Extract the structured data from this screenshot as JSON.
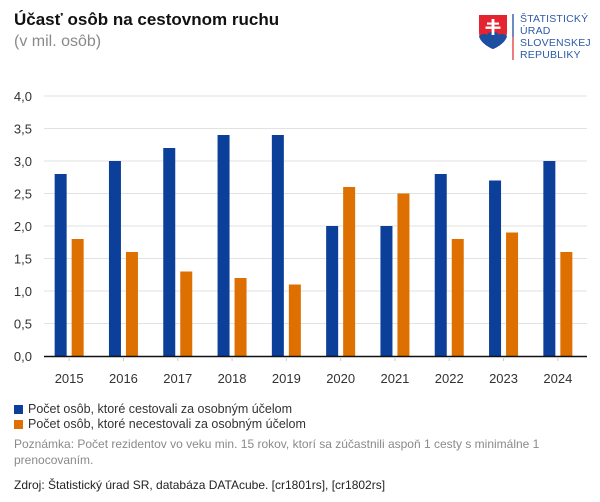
{
  "header": {
    "title": "Účasť osôb na cestovnom ruchu",
    "subtitle": "(v mil. osôb)"
  },
  "logo": {
    "icon": "slovak-coat-of-arms-icon",
    "lines": [
      "ŠTATISTICKÝ",
      "ÚRAD",
      "SLOVENSKEJ",
      "REPUBLIKY"
    ]
  },
  "chart_data": {
    "type": "bar",
    "title": "Účasť osôb na cestovnom ruchu",
    "subtitle": "(v mil. osôb)",
    "xlabel": "",
    "ylabel": "",
    "categories": [
      "2015",
      "2016",
      "2017",
      "2018",
      "2019",
      "2020",
      "2021",
      "2022",
      "2023",
      "2024"
    ],
    "series": [
      {
        "name": "Počet osôb, ktoré cestovali za osobným účelom",
        "color": "#0b3f9a",
        "values": [
          2.8,
          3.0,
          3.2,
          3.4,
          3.4,
          2.0,
          2.0,
          2.8,
          2.7,
          3.0
        ]
      },
      {
        "name": "Počet osôb, ktoré necestovali za osobným účelom",
        "color": "#dd7000",
        "values": [
          1.8,
          1.6,
          1.3,
          1.2,
          1.1,
          2.6,
          2.5,
          1.8,
          1.9,
          1.6
        ]
      }
    ],
    "ylim": [
      0,
      4.0
    ],
    "yticks": [
      "0,0",
      "0,5",
      "1,0",
      "1,5",
      "2,0",
      "2,5",
      "3,0",
      "3,5",
      "4,0"
    ],
    "ytick_values": [
      0,
      0.5,
      1.0,
      1.5,
      2.0,
      2.5,
      3.0,
      3.5,
      4.0
    ],
    "grid": true,
    "legend_position": "bottom-left"
  },
  "footer": {
    "note": "Poznámka: Počet rezidentov vo veku min. 15 rokov, ktorí sa zúčastnili aspoň 1 cesty s minimálne 1 prenocovaním.",
    "source": "Zdroj: Štatistický úrad SR, databáza DATAcube. [cr1801rs], [cr1802rs]"
  }
}
